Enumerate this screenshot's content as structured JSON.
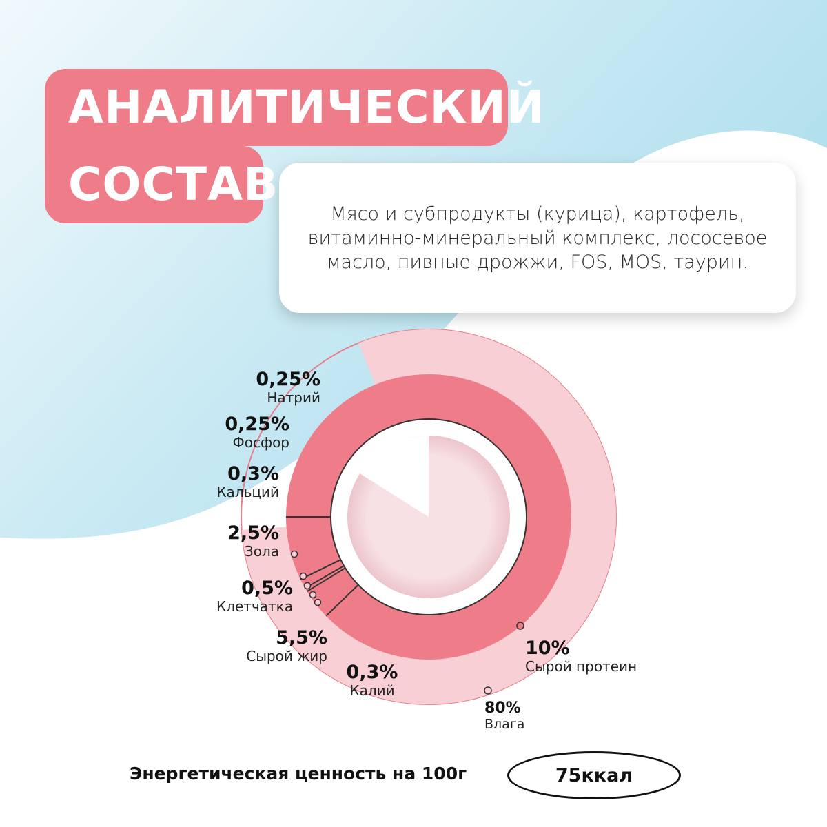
{
  "title": {
    "line1": "АНАЛИТИЧЕСКИЙ",
    "line2": "СОСТАВ"
  },
  "composition_text": "Мясо и субпродукты (курица), картофель, витаминно-минеральный комплекс, лососевое масло, пивные дрожжи, FOS, MOS, таурин.",
  "colors": {
    "accent": "#ee7d89",
    "outer_ring": "#f7cfd4",
    "outer_border": "#e6808c",
    "background_blue": "#b7e2ef",
    "center_disc": "#f7dde0"
  },
  "chart_data": {
    "type": "pie",
    "title": "",
    "rings": [
      {
        "ring": "outer",
        "slices": [
          {
            "label": "Влага",
            "value": 80
          }
        ]
      },
      {
        "ring": "inner",
        "slices": [
          {
            "label": "Сырой протеин",
            "value": 10
          },
          {
            "label": "Натрий",
            "value": 0.25
          },
          {
            "label": "Фосфор",
            "value": 0.25
          },
          {
            "label": "Кальций",
            "value": 0.3
          },
          {
            "label": "Зола",
            "value": 2.5
          },
          {
            "label": "Клетчатка",
            "value": 0.5
          },
          {
            "label": "Сырой жир",
            "value": 5.5
          },
          {
            "label": "Калий",
            "value": 0.3
          }
        ]
      }
    ],
    "labels": [
      {
        "id": "sodium",
        "value": "0,25%",
        "name": "Натрий"
      },
      {
        "id": "phosphorus",
        "value": "0,25%",
        "name": "Фосфор"
      },
      {
        "id": "calcium",
        "value": "0,3%",
        "name": "Кальций"
      },
      {
        "id": "ash",
        "value": "2,5%",
        "name": "Зола"
      },
      {
        "id": "fiber",
        "value": "0,5%",
        "name": "Клетчатка"
      },
      {
        "id": "fat",
        "value": "5,5%",
        "name": "Сырой жир"
      },
      {
        "id": "potassium",
        "value": "0,3%",
        "name": "Калий"
      },
      {
        "id": "protein",
        "value": "10%",
        "name": "Сырой протеин"
      },
      {
        "id": "moisture",
        "value": "80%",
        "name": "Влага"
      }
    ]
  },
  "energy": {
    "label": "Энергетическая ценность на 100г",
    "value": "75ккал"
  }
}
